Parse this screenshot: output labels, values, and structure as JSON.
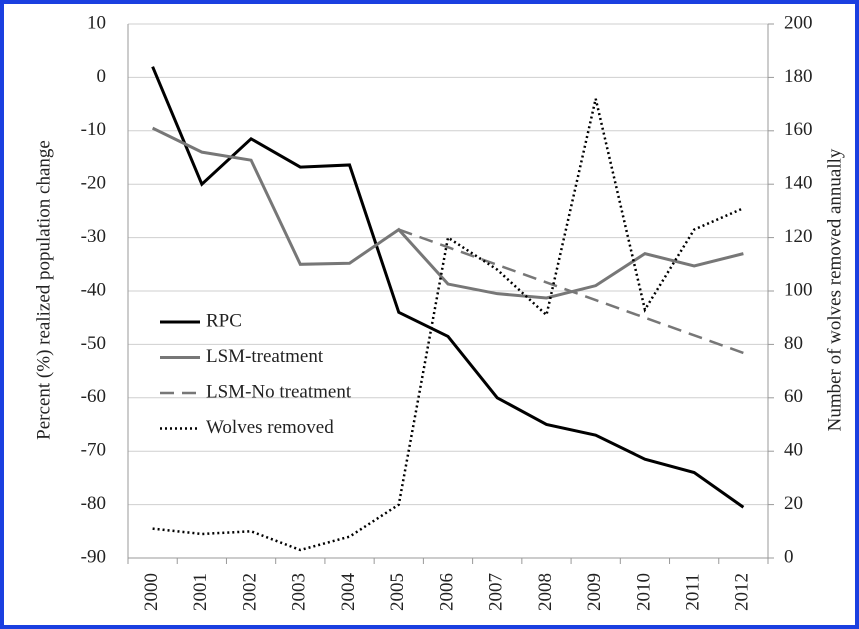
{
  "chart_data": {
    "type": "line",
    "y_label": "Percent (%) realized population change",
    "y2_label": "Number of wolves removed annually",
    "categories": [
      "2000",
      "2001",
      "2002",
      "2003",
      "2004",
      "2005",
      "2006",
      "2007",
      "2008",
      "2009",
      "2010",
      "2011",
      "2012"
    ],
    "ylim": [
      -90,
      10
    ],
    "yticks": [
      -90,
      -80,
      -70,
      -60,
      -50,
      -40,
      -30,
      -20,
      -10,
      0,
      10
    ],
    "y2lim": [
      0,
      200
    ],
    "y2ticks": [
      0,
      20,
      40,
      60,
      80,
      100,
      120,
      140,
      160,
      180,
      200
    ],
    "grid": true,
    "legend": "left",
    "series": [
      {
        "name": "RPC",
        "color": "#000000",
        "dash": "solid",
        "values": [
          2,
          -20,
          -11.5,
          -16.8,
          -16.4,
          -44,
          -48.5,
          -60,
          -65,
          -67,
          -71.5,
          -74,
          -80.5
        ]
      },
      {
        "name": "LSM-treatment",
        "color": "#777777",
        "dash": "solid",
        "values": [
          -9.5,
          -14,
          -15.5,
          -35,
          -34.8,
          -28.5,
          -38.7,
          -40.5,
          -41.3,
          -39,
          -33,
          -35.3,
          -33
        ]
      },
      {
        "name": "LSM-No treatment",
        "color": "#777777",
        "dash": "dashed",
        "values": [
          null,
          null,
          null,
          null,
          null,
          -28.5,
          -31.8,
          -35.1,
          -38.4,
          -41.7,
          -45,
          -48.3,
          -51.6
        ]
      },
      {
        "name": "Wolves removed",
        "color": "#000000",
        "dash": "dotted",
        "axis": "y2",
        "values": [
          11,
          9,
          10,
          3,
          8,
          20,
          120,
          108,
          91,
          172,
          93,
          123,
          131
        ]
      }
    ]
  }
}
